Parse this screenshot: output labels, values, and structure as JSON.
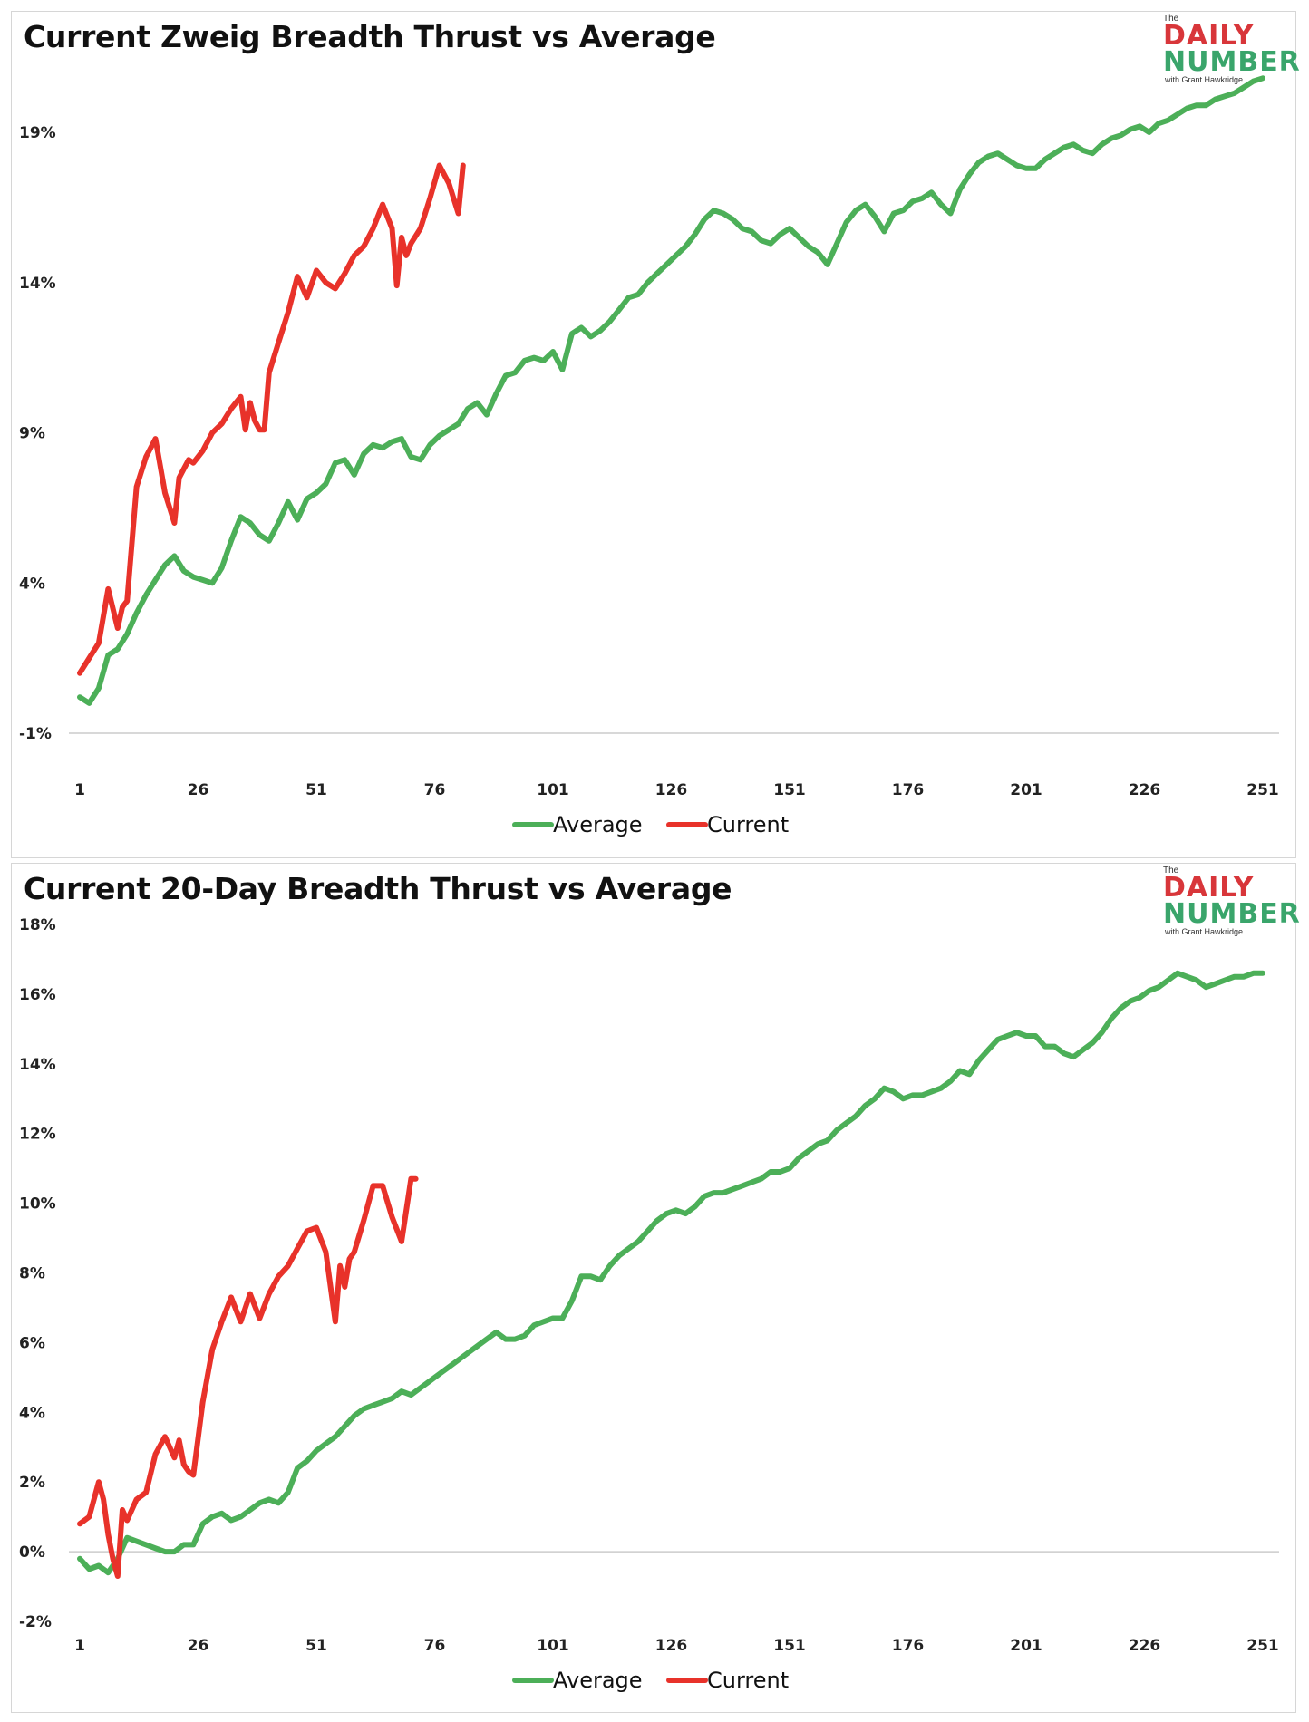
{
  "colors": {
    "average": "#4caf58",
    "current": "#e8322a",
    "axis": "#cccccc"
  },
  "logo": {
    "small": "The",
    "word1": "DAILY",
    "word2": "NUMBER",
    "byline": "with Grant Hawkridge"
  },
  "chart_data": [
    {
      "type": "line",
      "title": "Current Zweig Breadth Thrust vs Average",
      "ylim": [
        -1,
        21
      ],
      "yticks": [
        19,
        14,
        9,
        4,
        -1
      ],
      "ytick_labels": [
        "19%",
        "14%",
        "9%",
        "4%",
        "-1%"
      ],
      "x_ticks": [
        1,
        26,
        51,
        76,
        101,
        126,
        151,
        176,
        201,
        226,
        251
      ],
      "x_tick_labels": [
        "1",
        "26",
        "51",
        "76",
        "101",
        "126",
        "151",
        "176",
        "201",
        "226",
        "251"
      ],
      "xlim": [
        1,
        251
      ],
      "legend": [
        "Average",
        "Current"
      ],
      "series": [
        {
          "name": "Average",
          "x": [
            1,
            3,
            5,
            7,
            9,
            11,
            13,
            15,
            17,
            19,
            21,
            23,
            25,
            27,
            29,
            31,
            33,
            35,
            37,
            39,
            41,
            43,
            45,
            47,
            49,
            51,
            53,
            55,
            57,
            59,
            61,
            63,
            65,
            67,
            69,
            71,
            73,
            75,
            77,
            79,
            81,
            83,
            85,
            87,
            89,
            91,
            93,
            95,
            97,
            99,
            101,
            103,
            105,
            107,
            109,
            111,
            113,
            115,
            117,
            119,
            121,
            123,
            125,
            127,
            129,
            131,
            133,
            135,
            137,
            139,
            141,
            143,
            145,
            147,
            149,
            151,
            153,
            155,
            157,
            159,
            161,
            163,
            165,
            167,
            169,
            171,
            173,
            175,
            177,
            179,
            181,
            183,
            185,
            187,
            189,
            191,
            193,
            195,
            197,
            199,
            201,
            203,
            205,
            207,
            209,
            211,
            213,
            215,
            217,
            219,
            221,
            223,
            225,
            227,
            229,
            231,
            233,
            235,
            237,
            239,
            241,
            243,
            245,
            247,
            249,
            251
          ],
          "values": [
            0.2,
            0.0,
            0.5,
            1.6,
            1.8,
            2.3,
            3.0,
            3.6,
            4.1,
            4.6,
            4.9,
            4.4,
            4.2,
            4.1,
            4.0,
            4.5,
            5.4,
            6.2,
            6.0,
            5.6,
            5.4,
            6.0,
            6.7,
            6.1,
            6.8,
            7.0,
            7.3,
            8.0,
            8.1,
            7.6,
            8.3,
            8.6,
            8.5,
            8.7,
            8.8,
            8.2,
            8.1,
            8.6,
            8.9,
            9.1,
            9.3,
            9.8,
            10.0,
            9.6,
            10.3,
            10.9,
            11.0,
            11.4,
            11.5,
            11.4,
            11.7,
            11.1,
            12.3,
            12.5,
            12.2,
            12.4,
            12.7,
            13.1,
            13.5,
            13.6,
            14.0,
            14.3,
            14.6,
            14.9,
            15.2,
            15.6,
            16.1,
            16.4,
            16.3,
            16.1,
            15.8,
            15.7,
            15.4,
            15.3,
            15.6,
            15.8,
            15.5,
            15.2,
            15.0,
            14.6,
            15.3,
            16.0,
            16.4,
            16.6,
            16.2,
            15.7,
            16.3,
            16.4,
            16.7,
            16.8,
            17.0,
            16.6,
            16.3,
            17.1,
            17.6,
            18.0,
            18.2,
            18.3,
            18.1,
            17.9,
            17.8,
            17.8,
            18.1,
            18.3,
            18.5,
            18.6,
            18.4,
            18.3,
            18.6,
            18.8,
            18.9,
            19.1,
            19.2,
            19.0,
            19.3,
            19.4,
            19.6,
            19.8,
            19.9,
            19.9,
            20.1,
            20.2,
            20.3,
            20.5,
            20.7,
            20.8
          ]
        },
        {
          "name": "Current",
          "x": [
            1,
            3,
            5,
            7,
            9,
            10,
            11,
            13,
            15,
            17,
            19,
            21,
            22,
            23,
            24,
            25,
            27,
            29,
            31,
            33,
            35,
            36,
            37,
            38,
            39,
            40,
            41,
            43,
            45,
            47,
            49,
            51,
            53,
            55,
            57,
            59,
            61,
            63,
            65,
            67,
            68,
            69,
            70,
            71,
            73,
            75,
            77,
            79,
            81,
            82
          ],
          "values": [
            1.0,
            1.5,
            2.0,
            3.8,
            2.5,
            3.2,
            3.4,
            7.2,
            8.2,
            8.8,
            7.0,
            6.0,
            7.5,
            7.8,
            8.1,
            8.0,
            8.4,
            9.0,
            9.3,
            9.8,
            10.2,
            9.1,
            10.0,
            9.4,
            9.1,
            9.1,
            11.0,
            12.0,
            13.0,
            14.2,
            13.5,
            14.4,
            14.0,
            13.8,
            14.3,
            14.9,
            15.2,
            15.8,
            16.6,
            15.8,
            13.9,
            15.5,
            14.9,
            15.3,
            15.8,
            16.8,
            17.9,
            17.3,
            16.3,
            17.9
          ]
        }
      ]
    },
    {
      "type": "line",
      "title": "Current 20-Day Breadth Thrust vs Average",
      "ylim": [
        -2,
        18
      ],
      "yticks": [
        18,
        16,
        14,
        12,
        10,
        8,
        6,
        4,
        2,
        0,
        -2
      ],
      "ytick_labels": [
        "18%",
        "16%",
        "14%",
        "12%",
        "10%",
        "8%",
        "6%",
        "4%",
        "2%",
        "0%",
        "-2%"
      ],
      "x_ticks": [
        1,
        26,
        51,
        76,
        101,
        126,
        151,
        176,
        201,
        226,
        251
      ],
      "x_tick_labels": [
        "1",
        "26",
        "51",
        "76",
        "101",
        "126",
        "151",
        "176",
        "201",
        "226",
        "251"
      ],
      "xlim": [
        1,
        251
      ],
      "legend": [
        "Average",
        "Current"
      ],
      "series": [
        {
          "name": "Average",
          "x": [
            1,
            3,
            5,
            7,
            9,
            11,
            13,
            15,
            17,
            19,
            21,
            23,
            25,
            27,
            29,
            31,
            33,
            35,
            37,
            39,
            41,
            43,
            45,
            47,
            49,
            51,
            53,
            55,
            57,
            59,
            61,
            63,
            65,
            67,
            69,
            71,
            73,
            75,
            77,
            79,
            81,
            83,
            85,
            87,
            89,
            91,
            93,
            95,
            97,
            99,
            101,
            103,
            105,
            107,
            109,
            111,
            113,
            115,
            117,
            119,
            121,
            123,
            125,
            127,
            129,
            131,
            133,
            135,
            137,
            139,
            141,
            143,
            145,
            147,
            149,
            151,
            153,
            155,
            157,
            159,
            161,
            163,
            165,
            167,
            169,
            171,
            173,
            175,
            177,
            179,
            181,
            183,
            185,
            187,
            189,
            191,
            193,
            195,
            197,
            199,
            201,
            203,
            205,
            207,
            209,
            211,
            213,
            215,
            217,
            219,
            221,
            223,
            225,
            227,
            229,
            231,
            233,
            235,
            237,
            239,
            241,
            243,
            245,
            247,
            249,
            251
          ],
          "values": [
            -0.2,
            -0.5,
            -0.4,
            -0.6,
            -0.2,
            0.4,
            0.3,
            0.2,
            0.1,
            0.0,
            0.0,
            0.2,
            0.2,
            0.8,
            1.0,
            1.1,
            0.9,
            1.0,
            1.2,
            1.4,
            1.5,
            1.4,
            1.7,
            2.4,
            2.6,
            2.9,
            3.1,
            3.3,
            3.6,
            3.9,
            4.1,
            4.2,
            4.3,
            4.4,
            4.6,
            4.5,
            4.7,
            4.9,
            5.1,
            5.3,
            5.5,
            5.7,
            5.9,
            6.1,
            6.3,
            6.1,
            6.1,
            6.2,
            6.5,
            6.6,
            6.7,
            6.7,
            7.2,
            7.9,
            7.9,
            7.8,
            8.2,
            8.5,
            8.7,
            8.9,
            9.2,
            9.5,
            9.7,
            9.8,
            9.7,
            9.9,
            10.2,
            10.3,
            10.3,
            10.4,
            10.5,
            10.6,
            10.7,
            10.9,
            10.9,
            11.0,
            11.3,
            11.5,
            11.7,
            11.8,
            12.1,
            12.3,
            12.5,
            12.8,
            13.0,
            13.3,
            13.2,
            13.0,
            13.1,
            13.1,
            13.2,
            13.3,
            13.5,
            13.8,
            13.7,
            14.1,
            14.4,
            14.7,
            14.8,
            14.9,
            14.8,
            14.8,
            14.5,
            14.5,
            14.3,
            14.2,
            14.4,
            14.6,
            14.9,
            15.3,
            15.6,
            15.8,
            15.9,
            16.1,
            16.2,
            16.4,
            16.6,
            16.5,
            16.4,
            16.2,
            16.3,
            16.4,
            16.5,
            16.5,
            16.6,
            16.6
          ]
        },
        {
          "name": "Current",
          "x": [
            1,
            3,
            5,
            6,
            7,
            8,
            9,
            10,
            11,
            12,
            13,
            15,
            17,
            19,
            21,
            22,
            23,
            24,
            25,
            27,
            29,
            31,
            33,
            35,
            37,
            39,
            41,
            43,
            45,
            47,
            49,
            51,
            53,
            55,
            56,
            57,
            58,
            59,
            61,
            63,
            65,
            67,
            69,
            71,
            72
          ],
          "values": [
            0.8,
            1.0,
            2.0,
            1.5,
            0.5,
            -0.2,
            -0.7,
            1.2,
            0.9,
            1.2,
            1.5,
            1.7,
            2.8,
            3.3,
            2.7,
            3.2,
            2.5,
            2.3,
            2.2,
            4.3,
            5.8,
            6.6,
            7.3,
            6.6,
            7.4,
            6.7,
            7.4,
            7.9,
            8.2,
            8.7,
            9.2,
            9.3,
            8.6,
            6.6,
            8.2,
            7.6,
            8.4,
            8.6,
            9.5,
            10.5,
            10.5,
            9.6,
            8.9,
            10.7,
            10.7
          ]
        }
      ]
    }
  ]
}
